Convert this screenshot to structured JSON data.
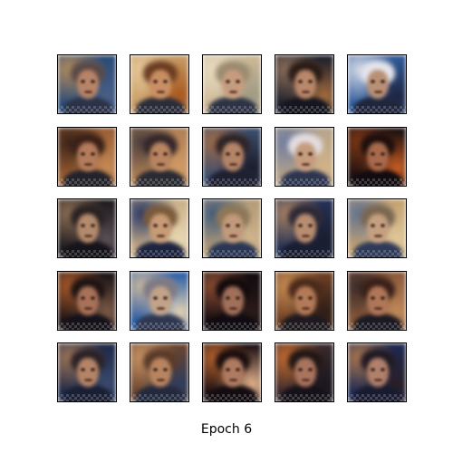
{
  "figure": {
    "title": "Epoch 6",
    "grid": {
      "rows": 5,
      "cols": 5
    },
    "samples": [
      {
        "bg": [
          "#2a4b78",
          "#b08a5c",
          "#4a5f86"
        ],
        "hair": "#5a4a48",
        "skin": "#b88468",
        "body": "#2c3348"
      },
      {
        "bg": [
          "#c79b64",
          "#e6c79a",
          "#a8571e"
        ],
        "hair": "#6a3c22",
        "skin": "#c98f63",
        "body": "#2b2d3a"
      },
      {
        "bg": [
          "#cdb896",
          "#e9dcc2",
          "#9f9a84"
        ],
        "hair": "#9a8b70",
        "skin": "#c79c7e",
        "body": "#2e3445"
      },
      {
        "bg": [
          "#1d1f2c",
          "#8a6d5a",
          "#a16a3e"
        ],
        "hair": "#2a1c16",
        "skin": "#b98769",
        "body": "#151620"
      },
      {
        "bg": [
          "#2f5a9a",
          "#d4d9e6",
          "#1e2540"
        ],
        "hair": "#e5e5ec",
        "skin": "#b99075",
        "body": "#20263b"
      },
      {
        "bg": [
          "#9a5e33",
          "#3a2318",
          "#c68a57"
        ],
        "hair": "#3b2117",
        "skin": "#b47c5b",
        "body": "#23222b"
      },
      {
        "bg": [
          "#b08055",
          "#4a3e3e",
          "#d19b67"
        ],
        "hair": "#35282a",
        "skin": "#b98561",
        "body": "#2a2a33"
      },
      {
        "bg": [
          "#3c4e6e",
          "#9c6a4a",
          "#1a1c2a"
        ],
        "hair": "#2e2426",
        "skin": "#b48467",
        "body": "#1f2030"
      },
      {
        "bg": [
          "#b7a48a",
          "#6f7c9f",
          "#d3b388"
        ],
        "hair": "#e3dde0",
        "skin": "#c69c7f",
        "body": "#2d3550"
      },
      {
        "bg": [
          "#1a0f10",
          "#7b3818",
          "#c85d22"
        ],
        "hair": "#1e0f0d",
        "skin": "#a96a4b",
        "body": "#120c10"
      },
      {
        "bg": [
          "#1e1a1e",
          "#8a6e54",
          "#5a4f55"
        ],
        "hair": "#2a2222",
        "skin": "#b48a6c",
        "body": "#15141a"
      },
      {
        "bg": [
          "#cbb08a",
          "#2b3a66",
          "#e8d7b3"
        ],
        "hair": "#7b5a3b",
        "skin": "#c79b74",
        "body": "#1d2440"
      },
      {
        "bg": [
          "#b39c78",
          "#415a7c",
          "#cfb48c"
        ],
        "hair": "#8d7758",
        "skin": "#c29a7b",
        "body": "#2a3653"
      },
      {
        "bg": [
          "#253156",
          "#a68062",
          "#1a1d2d"
        ],
        "hair": "#2d2a36",
        "skin": "#b88c6f",
        "body": "#1a1e32"
      },
      {
        "bg": [
          "#c4a271",
          "#617392",
          "#e0c89a"
        ],
        "hair": "#7a6650",
        "skin": "#c5a080",
        "body": "#2e3a58"
      },
      {
        "bg": [
          "#1c1416",
          "#a5582a",
          "#7b5a48"
        ],
        "hair": "#1e1414",
        "skin": "#a87158",
        "body": "#15121a"
      },
      {
        "bg": [
          "#2d5fa6",
          "#c8b6a0",
          "#e4d2b4"
        ],
        "hair": "#7e7a84",
        "skin": "#c3a388",
        "body": "#2f3850"
      },
      {
        "bg": [
          "#120c10",
          "#8a4c32",
          "#2c1a18"
        ],
        "hair": "#130b0c",
        "skin": "#a2705a",
        "body": "#100c12"
      },
      {
        "bg": [
          "#6e4024",
          "#c58a52",
          "#2c1d18"
        ],
        "hair": "#4a2a1a",
        "skin": "#b37a57",
        "body": "#1e1a20"
      },
      {
        "bg": [
          "#8a5a3a",
          "#3a2a2a",
          "#c08a5a"
        ],
        "hair": "#3a2018",
        "skin": "#b07658",
        "body": "#1c1a22"
      },
      {
        "bg": [
          "#1f2a48",
          "#9c7356",
          "#3a4a6e"
        ],
        "hair": "#2a2228",
        "skin": "#b48466",
        "body": "#1a1f34"
      },
      {
        "bg": [
          "#6a4530",
          "#c69264",
          "#2d3c5c"
        ],
        "hair": "#5a3b28",
        "skin": "#b98560",
        "body": "#232a3f"
      },
      {
        "bg": [
          "#1c1014",
          "#b0602c",
          "#e0b08a"
        ],
        "hair": "#1b0e0e",
        "skin": "#b07a60",
        "body": "#130d12"
      },
      {
        "bg": [
          "#3a2a2c",
          "#c06a30",
          "#1a1620"
        ],
        "hair": "#221616",
        "skin": "#a9745c",
        "body": "#16121a"
      },
      {
        "bg": [
          "#1e2a52",
          "#a8764e",
          "#2a1e26"
        ],
        "hair": "#201a24",
        "skin": "#b0806a",
        "body": "#191c30"
      }
    ]
  }
}
